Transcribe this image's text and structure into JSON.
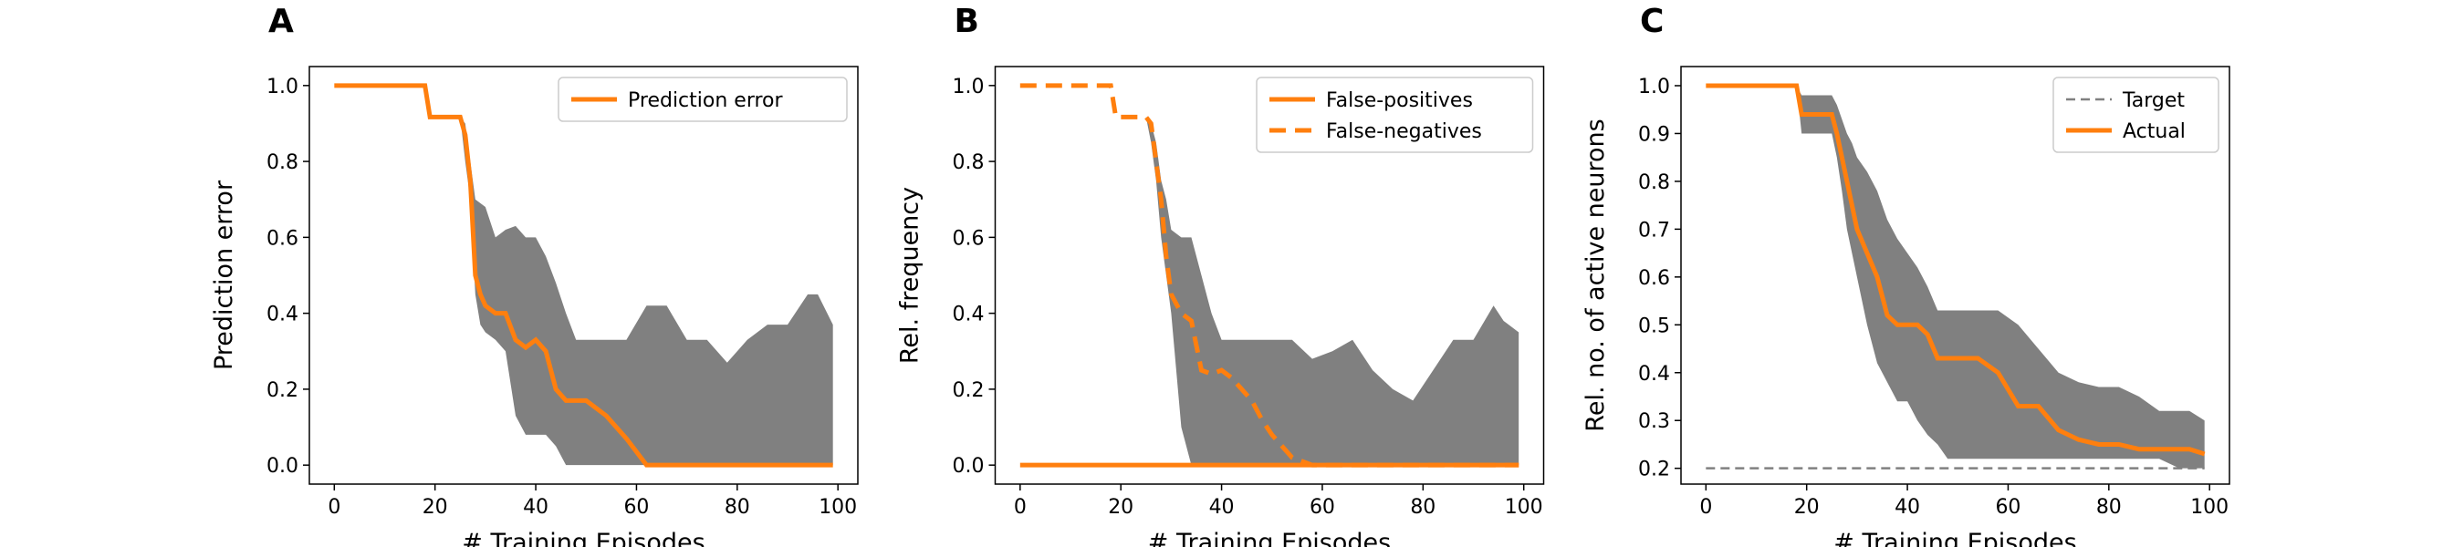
{
  "chart_data": [
    {
      "type": "line",
      "label": "A",
      "xlabel": "# Training Episodes",
      "ylabel": "Prediction error",
      "x": [
        0,
        18,
        19,
        25,
        26,
        27,
        28,
        29,
        30,
        32,
        34,
        36,
        38,
        40,
        42,
        44,
        46,
        48,
        50,
        54,
        58,
        62,
        66,
        70,
        74,
        78,
        82,
        86,
        90,
        94,
        96,
        99
      ],
      "xlim": [
        -4.95,
        103.95
      ],
      "xticks": [
        0,
        20,
        40,
        60,
        80,
        100
      ],
      "ylim": [
        -0.05,
        1.05
      ],
      "yticks": [
        {
          "value": 0,
          "label": "0.0"
        },
        0.2,
        0.4,
        0.6,
        0.8,
        {
          "value": 1,
          "label": "1.0"
        }
      ],
      "legend": "upper right",
      "band": {
        "color": "#808080",
        "upper": [
          1,
          1,
          0.917,
          0.917,
          0.9,
          0.8,
          0.7,
          0.69,
          0.68,
          0.6,
          0.62,
          0.63,
          0.6,
          0.6,
          0.55,
          0.48,
          0.4,
          0.33,
          0.33,
          0.33,
          0.33,
          0.42,
          0.42,
          0.33,
          0.33,
          0.27,
          0.33,
          0.37,
          0.37,
          0.45,
          0.45,
          0.37
        ],
        "lower": [
          1,
          1,
          0.917,
          0.917,
          0.8,
          0.7,
          0.45,
          0.37,
          0.35,
          0.33,
          0.3,
          0.13,
          0.08,
          0.08,
          0.08,
          0.05,
          0,
          0,
          0,
          0,
          0,
          0,
          0,
          0,
          0,
          0,
          0,
          0,
          0,
          0,
          0,
          0
        ]
      },
      "series": [
        {
          "name": "Prediction error",
          "color": "#ff7f0e",
          "style": "solid",
          "values": [
            1,
            1,
            0.917,
            0.917,
            0.87,
            0.75,
            0.5,
            0.45,
            0.42,
            0.4,
            0.4,
            0.33,
            0.31,
            0.33,
            0.3,
            0.2,
            0.17,
            0.17,
            0.17,
            0.13,
            0.07,
            0,
            0,
            0,
            0,
            0,
            0,
            0,
            0,
            0,
            0,
            0
          ]
        }
      ]
    },
    {
      "type": "line",
      "label": "B",
      "xlabel": "# Training Episodes",
      "ylabel": "Rel. frequency",
      "x": [
        0,
        18,
        19,
        25,
        26,
        27,
        28,
        29,
        30,
        32,
        34,
        36,
        38,
        40,
        42,
        44,
        46,
        48,
        50,
        54,
        58,
        62,
        66,
        70,
        74,
        78,
        82,
        86,
        90,
        94,
        96,
        99
      ],
      "xlim": [
        -4.95,
        103.95
      ],
      "xticks": [
        0,
        20,
        40,
        60,
        80,
        100
      ],
      "ylim": [
        -0.05,
        1.05
      ],
      "yticks": [
        {
          "value": 0,
          "label": "0.0"
        },
        0.2,
        0.4,
        0.6,
        0.8,
        {
          "value": 1,
          "label": "1.0"
        }
      ],
      "legend": "upper right",
      "band": {
        "color": "#808080",
        "upper": [
          1,
          1,
          0.917,
          0.917,
          0.9,
          0.85,
          0.75,
          0.7,
          0.62,
          0.6,
          0.6,
          0.5,
          0.4,
          0.33,
          0.33,
          0.33,
          0.33,
          0.33,
          0.33,
          0.33,
          0.28,
          0.3,
          0.33,
          0.25,
          0.2,
          0.17,
          0.25,
          0.33,
          0.33,
          0.42,
          0.38,
          0.35
        ],
        "lower": [
          1,
          1,
          0.917,
          0.917,
          0.85,
          0.75,
          0.6,
          0.5,
          0.4,
          0.1,
          0,
          0,
          0,
          0,
          0,
          0,
          0,
          0,
          0,
          0,
          0,
          0,
          0,
          0,
          0,
          0,
          0,
          0,
          0,
          0,
          0,
          0
        ]
      },
      "series": [
        {
          "name": "False-positives",
          "color": "#ff7f0e",
          "style": "solid",
          "values": [
            0,
            0,
            0,
            0,
            0,
            0,
            0,
            0,
            0,
            0,
            0,
            0,
            0,
            0,
            0,
            0,
            0,
            0,
            0,
            0,
            0,
            0,
            0,
            0,
            0,
            0,
            0,
            0,
            0,
            0,
            0,
            0
          ]
        },
        {
          "name": "False-negatives",
          "color": "#ff7f0e",
          "style": "dashed",
          "values": [
            1,
            1,
            0.917,
            0.917,
            0.9,
            0.8,
            0.7,
            0.55,
            0.45,
            0.4,
            0.38,
            0.25,
            0.24,
            0.25,
            0.23,
            0.2,
            0.17,
            0.12,
            0.08,
            0.02,
            0,
            0,
            0,
            0,
            0,
            0,
            0,
            0,
            0,
            0,
            0,
            0
          ]
        }
      ]
    },
    {
      "type": "line",
      "label": "C",
      "xlabel": "# Training Episodes",
      "ylabel": "Rel. no. of active neurons",
      "x": [
        0,
        18,
        19,
        25,
        26,
        27,
        28,
        29,
        30,
        32,
        34,
        36,
        38,
        40,
        42,
        44,
        46,
        48,
        50,
        54,
        58,
        62,
        66,
        70,
        74,
        78,
        82,
        86,
        90,
        94,
        96,
        99
      ],
      "xlim": [
        -4.95,
        103.95
      ],
      "xticks": [
        0,
        20,
        40,
        60,
        80,
        100
      ],
      "ylim": [
        0.167,
        1.04
      ],
      "yticks": [
        0.2,
        0.3,
        0.4,
        0.5,
        0.6,
        0.7,
        0.8,
        0.9,
        {
          "value": 1,
          "label": "1.0"
        }
      ],
      "legend": "upper right",
      "band": {
        "color": "#808080",
        "upper": [
          1,
          1,
          0.98,
          0.98,
          0.96,
          0.93,
          0.9,
          0.88,
          0.85,
          0.82,
          0.78,
          0.72,
          0.68,
          0.65,
          0.62,
          0.58,
          0.53,
          0.53,
          0.53,
          0.53,
          0.53,
          0.5,
          0.45,
          0.4,
          0.38,
          0.37,
          0.37,
          0.35,
          0.32,
          0.32,
          0.32,
          0.3
        ],
        "lower": [
          1,
          1,
          0.9,
          0.9,
          0.85,
          0.78,
          0.7,
          0.65,
          0.6,
          0.5,
          0.42,
          0.38,
          0.34,
          0.34,
          0.3,
          0.27,
          0.25,
          0.22,
          0.22,
          0.22,
          0.22,
          0.22,
          0.22,
          0.22,
          0.22,
          0.22,
          0.22,
          0.22,
          0.22,
          0.2,
          0.2,
          0.2
        ]
      },
      "series": [
        {
          "name": "Target",
          "color": "#808080",
          "style": "thin-dashed",
          "values": [
            0.2,
            0.2,
            0.2,
            0.2,
            0.2,
            0.2,
            0.2,
            0.2,
            0.2,
            0.2,
            0.2,
            0.2,
            0.2,
            0.2,
            0.2,
            0.2,
            0.2,
            0.2,
            0.2,
            0.2,
            0.2,
            0.2,
            0.2,
            0.2,
            0.2,
            0.2,
            0.2,
            0.2,
            0.2,
            0.2,
            0.2,
            0.2
          ]
        },
        {
          "name": "Actual",
          "color": "#ff7f0e",
          "style": "solid",
          "values": [
            1,
            1,
            0.94,
            0.94,
            0.9,
            0.85,
            0.8,
            0.75,
            0.7,
            0.65,
            0.6,
            0.52,
            0.5,
            0.5,
            0.5,
            0.48,
            0.43,
            0.43,
            0.43,
            0.43,
            0.4,
            0.33,
            0.33,
            0.28,
            0.26,
            0.25,
            0.25,
            0.24,
            0.24,
            0.24,
            0.24,
            0.23
          ]
        }
      ]
    }
  ]
}
